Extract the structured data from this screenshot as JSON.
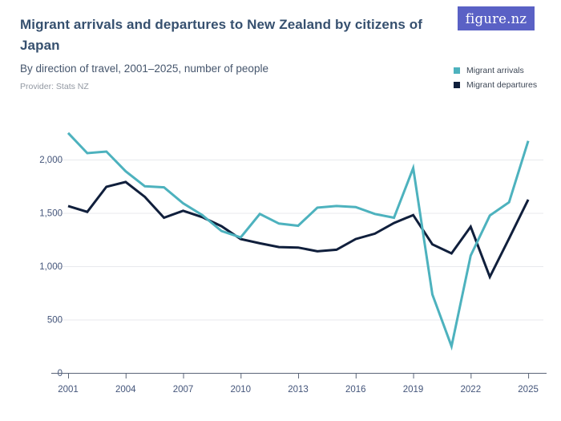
{
  "header": {
    "title": "Migrant arrivals and departures to New Zealand by citizens of Japan",
    "subtitle": "By direction of travel, 2001–2025, number of people",
    "provider": "Provider: Stats NZ"
  },
  "logo": {
    "text": "figure.nz",
    "background": "#5a61c5"
  },
  "legend": {
    "position": "top-right",
    "items": [
      {
        "label": "Migrant arrivals",
        "color": "#4db2be"
      },
      {
        "label": "Migrant departures",
        "color": "#101f3c"
      }
    ]
  },
  "chart_data": {
    "type": "line",
    "title": "Migrant arrivals and departures to New Zealand by citizens of Japan",
    "subtitle": "By direction of travel, 2001–2025, number of people",
    "xlabel": "",
    "ylabel": "",
    "x": [
      2001,
      2002,
      2003,
      2004,
      2005,
      2006,
      2007,
      2008,
      2009,
      2010,
      2011,
      2012,
      2013,
      2014,
      2015,
      2016,
      2017,
      2018,
      2019,
      2020,
      2021,
      2022,
      2023,
      2024,
      2025
    ],
    "series": [
      {
        "name": "Migrant arrivals",
        "color": "#4db2be",
        "values": [
          2250,
          2060,
          2075,
          1890,
          1750,
          1740,
          1590,
          1480,
          1330,
          1270,
          1490,
          1400,
          1380,
          1550,
          1565,
          1555,
          1490,
          1455,
          1920,
          735,
          250,
          1100,
          1475,
          1600,
          2175
        ]
      },
      {
        "name": "Migrant departures",
        "color": "#101f3c",
        "values": [
          1565,
          1510,
          1745,
          1790,
          1650,
          1455,
          1520,
          1460,
          1375,
          1255,
          1215,
          1180,
          1175,
          1140,
          1155,
          1255,
          1305,
          1405,
          1480,
          1205,
          1120,
          1370,
          900,
          1260,
          1625
        ]
      }
    ],
    "y_ticks": [
      0,
      500,
      1000,
      1500,
      2000
    ],
    "y_tick_labels": [
      "0",
      "500",
      "1,000",
      "1,500",
      "2,000"
    ],
    "x_tick_labels": [
      "2001",
      "2004",
      "2007",
      "2010",
      "2013",
      "2016",
      "2019",
      "2022",
      "2025"
    ],
    "ylim": [
      0,
      2250
    ],
    "grid": "horizontal",
    "legend_position": "top-right"
  }
}
